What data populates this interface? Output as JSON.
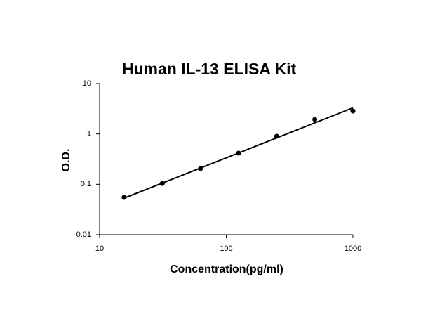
{
  "chart_data": {
    "type": "scatter",
    "title": "Human IL-13 ELISA Kit",
    "x_label": "Concentration(pg/ml)",
    "y_label": "O.D.",
    "x": [
      15.6,
      31.25,
      62.5,
      125,
      250,
      500,
      1000
    ],
    "values": [
      0.055,
      0.104,
      0.205,
      0.415,
      0.9,
      1.94,
      2.85
    ],
    "color": "#000000",
    "trendline": {
      "x": [
        15.6,
        1000
      ],
      "values": [
        0.053,
        3.3
      ]
    },
    "log_x": true,
    "log_y": true,
    "xlim": [
      10,
      1000
    ],
    "ylim": [
      0.01,
      10
    ],
    "xticks": [
      10,
      100,
      1000
    ],
    "yticks": [
      0.01,
      0.1,
      1,
      10
    ],
    "grid": false
  }
}
